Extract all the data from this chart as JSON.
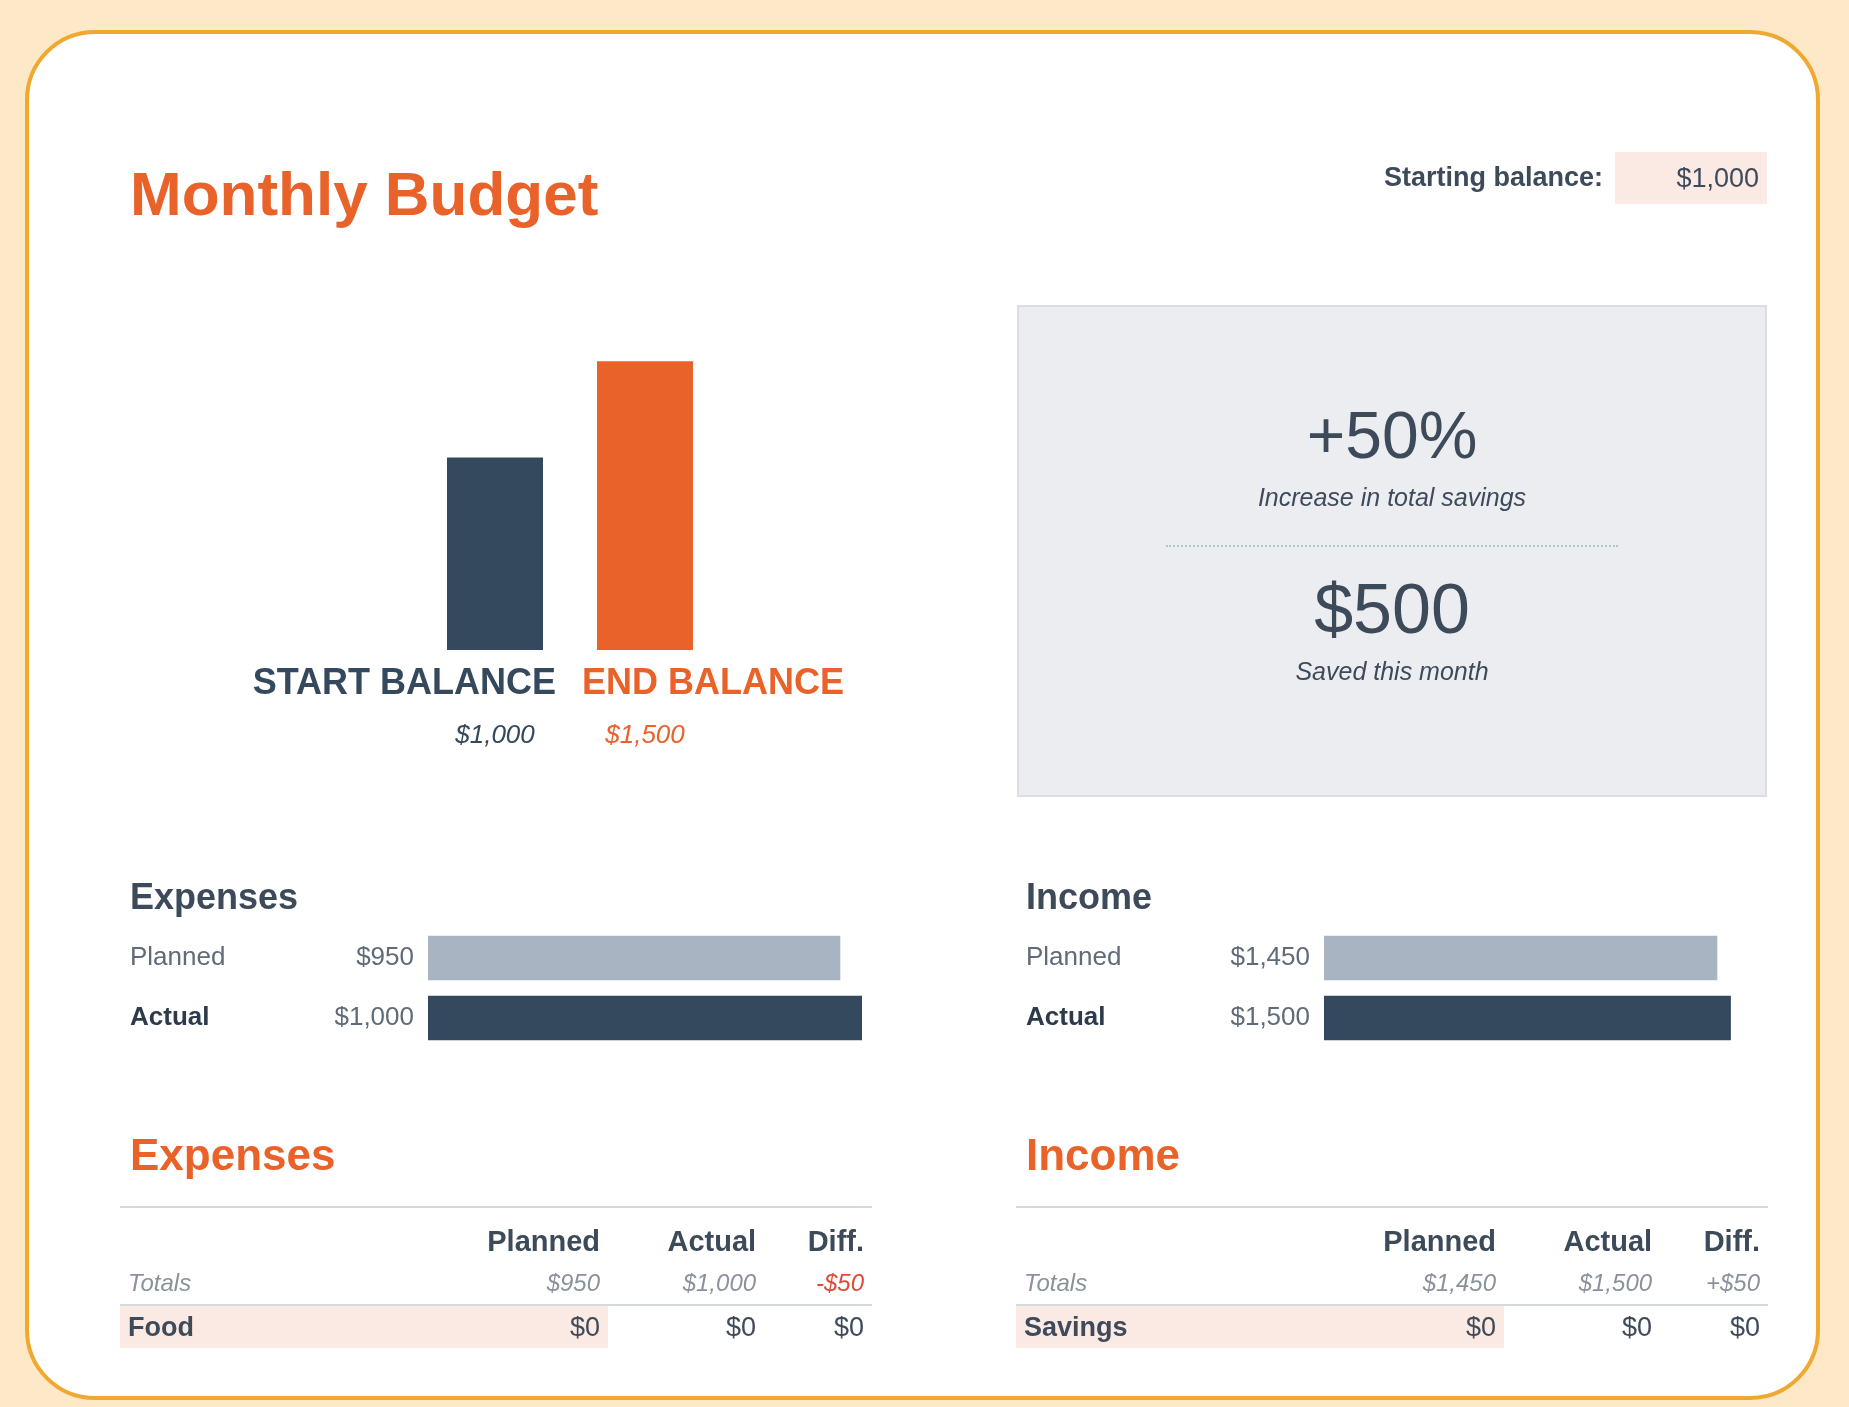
{
  "chart_data": [
    {
      "type": "bar",
      "title": "Monthly Budget",
      "categories": [
        "START BALANCE",
        "END BALANCE"
      ],
      "values": [
        1000,
        1500
      ],
      "colors": [
        "#34495e",
        "#e8622a"
      ],
      "value_labels": [
        "$1,000",
        "$1,500"
      ],
      "annotations": [
        "Starting balance:",
        "$1,000"
      ]
    },
    {
      "type": "other",
      "annotations": [
        "+50%",
        "Increase in total savings",
        "$500",
        "Saved this month"
      ]
    },
    {
      "type": "bar",
      "orientation": "horizontal",
      "title": "Expenses",
      "categories": [
        "Planned",
        "Actual"
      ],
      "values": [
        950,
        1000
      ],
      "colors": [
        "#a9b4c2",
        "#34495e"
      ],
      "value_labels": [
        "$950",
        "$1,000"
      ]
    },
    {
      "type": "bar",
      "orientation": "horizontal",
      "title": "Income",
      "categories": [
        "Planned",
        "Actual"
      ],
      "values": [
        1450,
        1500
      ],
      "colors": [
        "#a9b4c2",
        "#34495e"
      ],
      "value_labels": [
        "$1,450",
        "$1,500"
      ]
    },
    {
      "type": "other",
      "title": "Expenses",
      "categories": [
        "Planned",
        "Actual",
        "Diff."
      ],
      "y_categories": [
        "Totals",
        "Food"
      ],
      "cell_labels": [
        [
          "$950",
          "$1,000",
          "-$50"
        ],
        [
          "$0",
          "$0",
          "$0"
        ]
      ]
    },
    {
      "type": "other",
      "title": "Income",
      "categories": [
        "Planned",
        "Actual",
        "Diff."
      ],
      "y_categories": [
        "Totals",
        "Savings"
      ],
      "cell_labels": [
        [
          "$1,450",
          "$1,500",
          "+$50"
        ],
        [
          "$0",
          "$0",
          "$0"
        ]
      ]
    }
  ]
}
